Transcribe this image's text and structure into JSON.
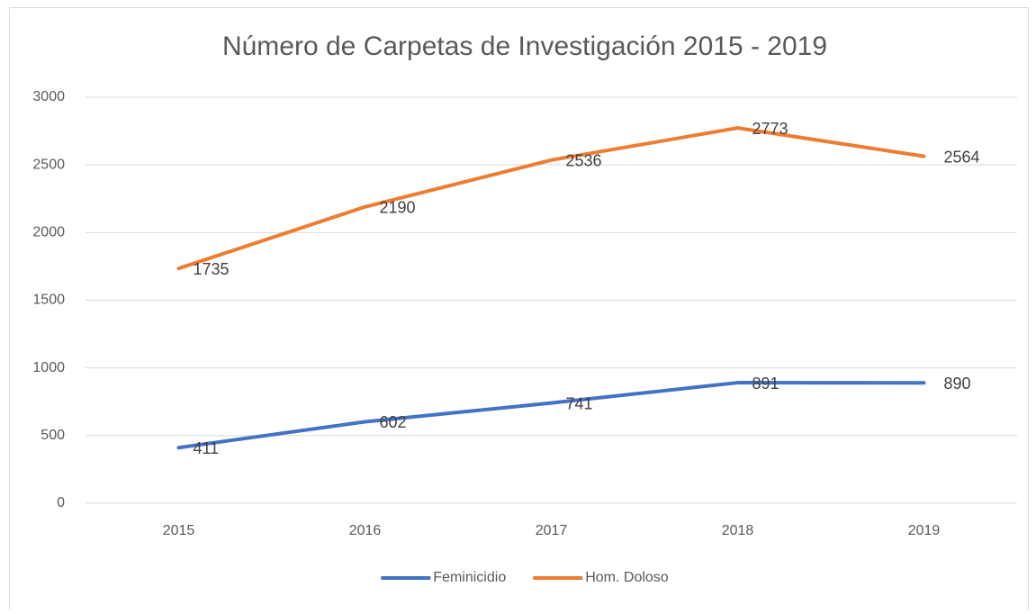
{
  "chart_data": {
    "type": "line",
    "title": "Número de Carpetas de Investigación 2015 - 2019",
    "categories": [
      "2015",
      "2016",
      "2017",
      "2018",
      "2019"
    ],
    "series": [
      {
        "name": "Feminicidio",
        "color": "#4472c4",
        "values": [
          411,
          602,
          741,
          891,
          890
        ]
      },
      {
        "name": "Hom. Doloso",
        "color": "#ed7d31",
        "values": [
          1735,
          2190,
          2536,
          2773,
          2564
        ]
      }
    ],
    "ylim": [
      0,
      3000
    ],
    "yticks": [
      0,
      500,
      1000,
      1500,
      2000,
      2500,
      3000
    ],
    "grid": true,
    "legend": "bottom"
  }
}
